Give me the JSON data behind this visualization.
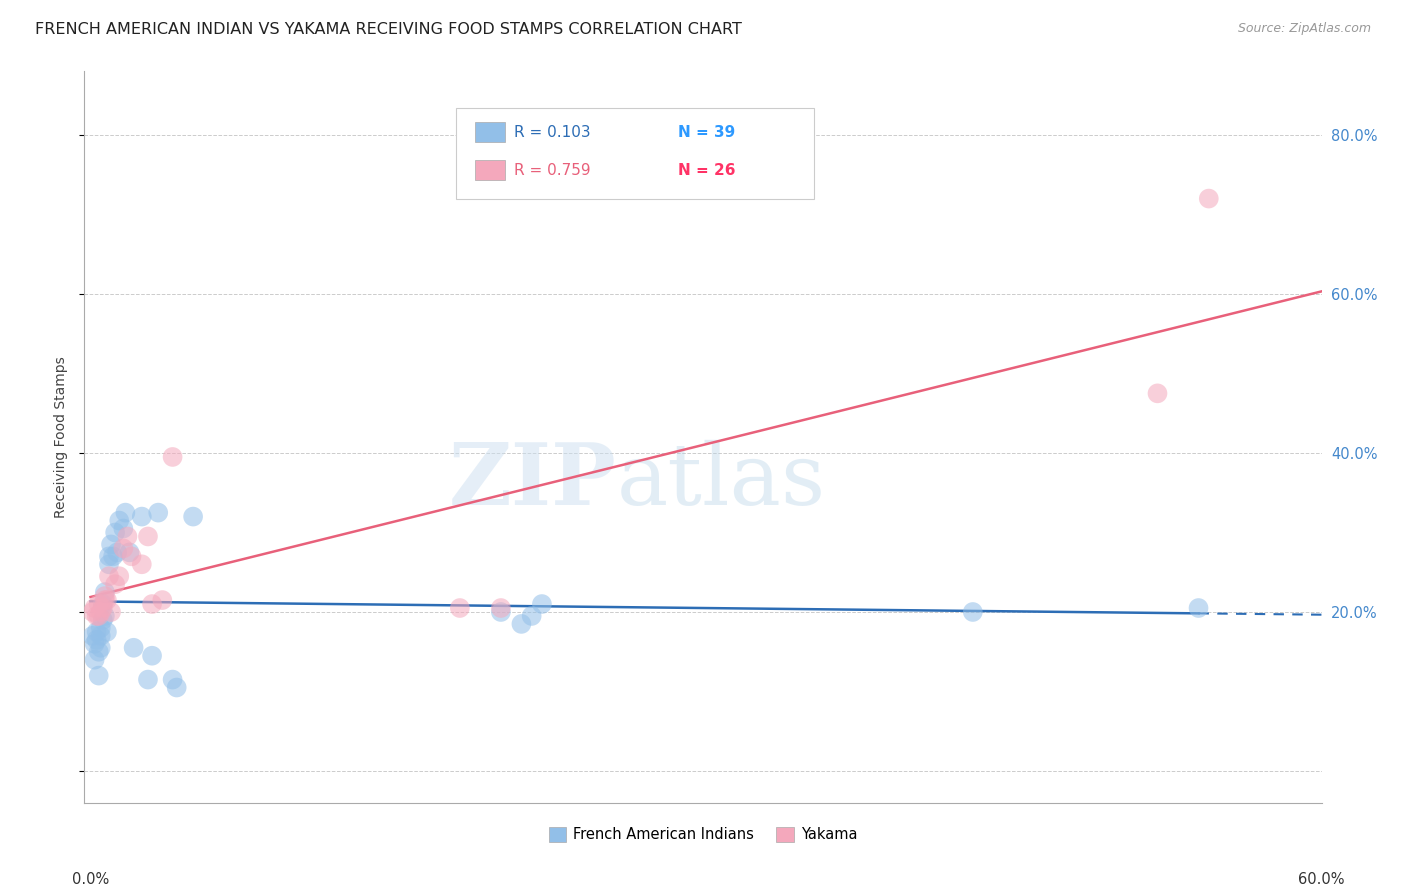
{
  "title": "FRENCH AMERICAN INDIAN VS YAKAMA RECEIVING FOOD STAMPS CORRELATION CHART",
  "source": "Source: ZipAtlas.com",
  "ylabel": "Receiving Food Stamps",
  "xlim": [
    0.0,
    0.6
  ],
  "ylim": [
    -0.04,
    0.88
  ],
  "yticks": [
    0.0,
    0.2,
    0.4,
    0.6,
    0.8
  ],
  "ytick_labels": [
    "",
    "20.0%",
    "40.0%",
    "60.0%",
    "80.0%"
  ],
  "xtick_labels": [
    "0.0%",
    "60.0%"
  ],
  "watermark": "ZIPatlas",
  "series1_label": "French American Indians",
  "series2_label": "Yakama",
  "series1_color": "#92bfe8",
  "series2_color": "#f4a8bc",
  "series1_line_color": "#2d6db5",
  "series2_line_color": "#e8607a",
  "r1_color": "#2d6db5",
  "r2_color": "#e8607a",
  "n1_color": "#2d99ff",
  "n2_color": "#ff3366",
  "background": "#ffffff",
  "grid_color": "#cccccc",
  "series1_x": [
    0.001,
    0.002,
    0.002,
    0.003,
    0.003,
    0.004,
    0.004,
    0.005,
    0.005,
    0.005,
    0.006,
    0.006,
    0.007,
    0.007,
    0.008,
    0.009,
    0.009,
    0.01,
    0.011,
    0.012,
    0.013,
    0.014,
    0.016,
    0.017,
    0.019,
    0.021,
    0.025,
    0.028,
    0.03,
    0.033,
    0.04,
    0.042,
    0.05,
    0.2,
    0.21,
    0.215,
    0.22,
    0.43,
    0.54
  ],
  "series1_y": [
    0.17,
    0.16,
    0.14,
    0.175,
    0.165,
    0.15,
    0.12,
    0.18,
    0.17,
    0.155,
    0.21,
    0.19,
    0.225,
    0.195,
    0.175,
    0.27,
    0.26,
    0.285,
    0.27,
    0.3,
    0.275,
    0.315,
    0.305,
    0.325,
    0.275,
    0.155,
    0.32,
    0.115,
    0.145,
    0.325,
    0.115,
    0.105,
    0.32,
    0.2,
    0.185,
    0.195,
    0.21,
    0.2,
    0.205
  ],
  "series2_x": [
    0.001,
    0.002,
    0.003,
    0.004,
    0.004,
    0.005,
    0.006,
    0.007,
    0.007,
    0.008,
    0.009,
    0.01,
    0.012,
    0.014,
    0.016,
    0.018,
    0.02,
    0.025,
    0.028,
    0.03,
    0.035,
    0.04,
    0.18,
    0.2,
    0.52,
    0.545
  ],
  "series2_y": [
    0.2,
    0.205,
    0.195,
    0.21,
    0.195,
    0.2,
    0.205,
    0.22,
    0.215,
    0.215,
    0.245,
    0.2,
    0.235,
    0.245,
    0.28,
    0.295,
    0.27,
    0.26,
    0.295,
    0.21,
    0.215,
    0.395,
    0.205,
    0.205,
    0.475,
    0.72
  ],
  "title_fontsize": 11.5,
  "axis_fontsize": 10,
  "tick_fontsize": 10.5,
  "legend_fontsize": 11
}
